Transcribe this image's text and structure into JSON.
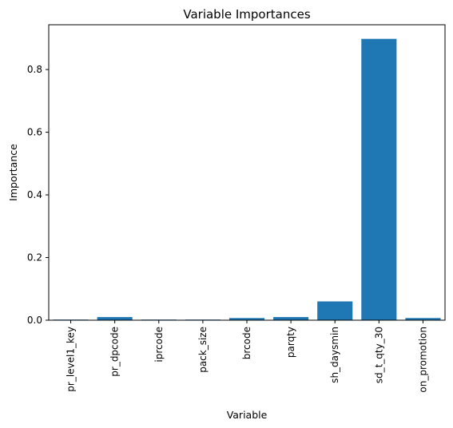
{
  "chart_data": {
    "type": "bar",
    "title": "Variable Importances",
    "xlabel": "Variable",
    "ylabel": "Importance",
    "categories": [
      "pr_level1_key",
      "pr_dpcode",
      "iprcode",
      "pack_size",
      "brcode",
      "parqty",
      "sh_daysmin",
      "sd_t_qty_30",
      "on_promotion"
    ],
    "values": [
      0.002,
      0.01,
      0.002,
      0.002,
      0.007,
      0.01,
      0.06,
      0.898,
      0.007
    ],
    "ylim": [
      0,
      0.943
    ],
    "yticks": [
      "0.0",
      "0.2",
      "0.4",
      "0.6",
      "0.8"
    ],
    "bar_color": "#1f77b4",
    "grid": false
  }
}
